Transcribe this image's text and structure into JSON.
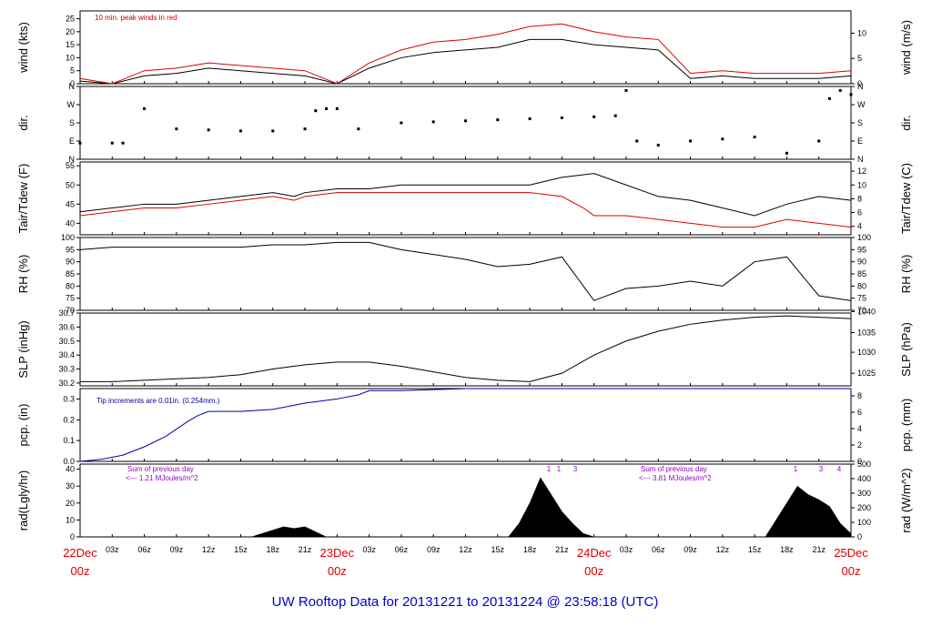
{
  "title": "UW Rooftop Data for 20131221  to  20131224 @ 23:58:18  (UTC)",
  "colors": {
    "black": "#000000",
    "red": "#dd0000",
    "blue": "#0000aa",
    "purple": "#9900cc",
    "title": "#0000cc"
  },
  "time_axis": {
    "hour_ticks": [
      "03z",
      "06z",
      "09z",
      "12z",
      "15z",
      "18z",
      "21z"
    ],
    "days": [
      {
        "date": "22Dec",
        "hour": "00z"
      },
      {
        "date": "23Dec",
        "hour": "00z"
      },
      {
        "date": "24Dec",
        "hour": "00z"
      },
      {
        "date": "25Dec",
        "hour": "00z"
      }
    ]
  },
  "chart_data": [
    {
      "id": "wind",
      "type": "line",
      "ylabel_left": "wind (kts)",
      "ylabel_right": "wind (m/s)",
      "ylim": [
        0,
        28
      ],
      "ticks_left": [
        "0",
        "5",
        "10",
        "15",
        "20",
        "25"
      ],
      "ticks_left_values": [
        0,
        5,
        10,
        15,
        20,
        25
      ],
      "ticks_right": [
        "0",
        "5",
        "10"
      ],
      "ticks_right_values": [
        0,
        9.72,
        19.44
      ],
      "annotation": "10 min. peak winds in red",
      "series": [
        {
          "name": "mean",
          "color": "#000000",
          "x": [
            0,
            3,
            6,
            9,
            12,
            15,
            18,
            21,
            24,
            27,
            30,
            33,
            36,
            39,
            42,
            45,
            48,
            51,
            54,
            57,
            60,
            63,
            66,
            69,
            72
          ],
          "y": [
            1,
            0,
            3,
            4,
            6,
            5,
            4,
            3,
            0,
            6,
            10,
            12,
            13,
            14,
            17,
            17,
            15,
            14,
            13,
            2,
            3,
            2,
            2,
            2,
            3
          ]
        },
        {
          "name": "peak",
          "color": "#dd0000",
          "x": [
            0,
            3,
            6,
            9,
            12,
            15,
            18,
            21,
            24,
            27,
            30,
            33,
            36,
            39,
            42,
            45,
            48,
            51,
            54,
            57,
            60,
            63,
            66,
            69,
            72
          ],
          "y": [
            2,
            0,
            5,
            6,
            8,
            7,
            6,
            5,
            0,
            8,
            13,
            16,
            17,
            19,
            22,
            23,
            20,
            18,
            17,
            4,
            5,
            4,
            4,
            4,
            5
          ]
        }
      ]
    },
    {
      "id": "dir",
      "type": "scatter",
      "ylabel_left": "dir.",
      "ylabel_right": "dir.",
      "ylim": [
        0,
        360
      ],
      "ticks_left": [
        "N",
        "E",
        "S",
        "W",
        "N"
      ],
      "ticks_left_values": [
        0,
        90,
        180,
        270,
        360
      ],
      "ticks_right": [
        "N",
        "E",
        "S",
        "W",
        "N"
      ],
      "ticks_right_values": [
        0,
        90,
        180,
        270,
        360
      ],
      "series": [
        {
          "name": "direction",
          "color": "#000000",
          "x": [
            0,
            3,
            4,
            6,
            9,
            12,
            15,
            18,
            21,
            22,
            23,
            24,
            26,
            30,
            33,
            36,
            39,
            42,
            45,
            48,
            50,
            51,
            52,
            54,
            57,
            60,
            63,
            66,
            69,
            70,
            71,
            72
          ],
          "y": [
            80,
            80,
            80,
            250,
            150,
            145,
            140,
            140,
            150,
            240,
            250,
            250,
            150,
            180,
            185,
            190,
            195,
            200,
            205,
            210,
            215,
            340,
            90,
            70,
            90,
            100,
            110,
            30,
            90,
            300,
            340,
            320
          ]
        }
      ]
    },
    {
      "id": "temp",
      "type": "line",
      "ylabel_left": "Tair/Tdew (F)",
      "ylabel_right": "Tair/Tdew (C)",
      "ylim": [
        37,
        56
      ],
      "ticks_left": [
        "40",
        "45",
        "50",
        "55"
      ],
      "ticks_left_values": [
        40,
        45,
        50,
        55
      ],
      "ticks_right": [
        "4",
        "6",
        "8",
        "10",
        "12"
      ],
      "ticks_right_values": [
        39.2,
        42.8,
        46.4,
        50,
        53.6
      ],
      "series": [
        {
          "name": "Tair",
          "color": "#000000",
          "x": [
            0,
            3,
            6,
            9,
            12,
            15,
            18,
            20,
            21,
            24,
            27,
            30,
            33,
            36,
            39,
            42,
            45,
            48,
            51,
            53,
            54,
            57,
            60,
            63,
            66,
            69,
            72
          ],
          "y": [
            43,
            44,
            45,
            45,
            46,
            47,
            48,
            47,
            48,
            49,
            49,
            50,
            50,
            50,
            50,
            50,
            52,
            53,
            50,
            48,
            47,
            46,
            44,
            42,
            45,
            47,
            46
          ]
        },
        {
          "name": "Tdew",
          "color": "#dd0000",
          "x": [
            0,
            3,
            6,
            9,
            12,
            15,
            18,
            20,
            21,
            24,
            27,
            30,
            33,
            36,
            39,
            42,
            45,
            47,
            48,
            51,
            54,
            57,
            60,
            63,
            66,
            69,
            72
          ],
          "y": [
            42,
            43,
            44,
            44,
            45,
            46,
            47,
            46,
            47,
            48,
            48,
            48,
            48,
            48,
            48,
            48,
            47,
            44,
            42,
            42,
            41,
            40,
            39,
            39,
            41,
            40,
            39
          ]
        }
      ]
    },
    {
      "id": "rh",
      "type": "line",
      "ylabel_left": "RH (%)",
      "ylabel_right": "RH (%)",
      "ylim": [
        70,
        100
      ],
      "ticks_left": [
        "70",
        "75",
        "80",
        "85",
        "90",
        "95",
        "100"
      ],
      "ticks_left_values": [
        70,
        75,
        80,
        85,
        90,
        95,
        100
      ],
      "ticks_right": [
        "70",
        "75",
        "80",
        "85",
        "90",
        "95",
        "100"
      ],
      "ticks_right_values": [
        70,
        75,
        80,
        85,
        90,
        95,
        100
      ],
      "series": [
        {
          "name": "RH",
          "color": "#000000",
          "x": [
            0,
            3,
            6,
            9,
            12,
            15,
            18,
            21,
            24,
            27,
            30,
            33,
            36,
            39,
            42,
            45,
            46,
            47,
            48,
            51,
            54,
            57,
            60,
            63,
            66,
            69,
            72
          ],
          "y": [
            95,
            96,
            96,
            96,
            96,
            96,
            97,
            97,
            98,
            98,
            95,
            93,
            91,
            88,
            89,
            92,
            86,
            80,
            74,
            79,
            80,
            82,
            80,
            90,
            92,
            76,
            74
          ]
        }
      ]
    },
    {
      "id": "slp",
      "type": "line",
      "ylabel_left": "SLP (inHg)",
      "ylabel_right": "SLP (hPa)",
      "ylim": [
        30.18,
        30.7
      ],
      "ticks_left": [
        "30.2",
        "30.3",
        "30.4",
        "30.5",
        "30.6",
        "30.7"
      ],
      "ticks_left_values": [
        30.2,
        30.3,
        30.4,
        30.5,
        30.6,
        30.7
      ],
      "ticks_right": [
        "1025",
        "1030",
        "1035",
        "1040"
      ],
      "ticks_right_values": [
        30.27,
        30.42,
        30.56,
        30.71
      ],
      "series": [
        {
          "name": "SLP",
          "color": "#000000",
          "x": [
            0,
            3,
            6,
            9,
            12,
            15,
            18,
            21,
            24,
            27,
            30,
            33,
            36,
            39,
            42,
            45,
            48,
            51,
            54,
            57,
            60,
            63,
            66,
            69,
            72
          ],
          "y": [
            30.21,
            30.21,
            30.22,
            30.23,
            30.24,
            30.26,
            30.3,
            30.33,
            30.35,
            30.35,
            30.32,
            30.28,
            30.24,
            30.22,
            30.21,
            30.27,
            30.4,
            30.5,
            30.57,
            30.62,
            30.65,
            30.67,
            30.68,
            30.67,
            30.66
          ]
        }
      ]
    },
    {
      "id": "pcp",
      "type": "line",
      "ylabel_left": "pcp. (in)",
      "ylabel_right": "pcp. (mm)",
      "ylim": [
        0,
        0.35
      ],
      "ticks_left": [
        "0.0",
        "0.1",
        "0.2",
        "0.3"
      ],
      "ticks_left_values": [
        0,
        0.1,
        0.2,
        0.3
      ],
      "ticks_right": [
        "0",
        "2",
        "4",
        "6",
        "8"
      ],
      "ticks_right_values": [
        0,
        0.0787,
        0.1575,
        0.2362,
        0.315
      ],
      "annotation": "Tip increments are 0.01in. (0.254mm.)",
      "series": [
        {
          "name": "precip",
          "color": "#0000aa",
          "x": [
            0,
            2,
            4,
            6,
            8,
            10,
            11,
            12,
            15,
            18,
            21,
            24,
            26,
            27,
            30,
            36,
            39,
            42,
            72
          ],
          "y": [
            0,
            0.01,
            0.03,
            0.07,
            0.12,
            0.19,
            0.22,
            0.24,
            0.24,
            0.25,
            0.28,
            0.3,
            0.32,
            0.34,
            0.34,
            0.35,
            0.35,
            0.35,
            0.35
          ]
        }
      ]
    },
    {
      "id": "rad",
      "type": "area",
      "ylabel_left": "rad(Lgly/hr)",
      "ylabel_right": "rad (W/m^2)",
      "ylim": [
        0,
        43
      ],
      "ticks_left": [
        "0",
        "10",
        "20",
        "30",
        "40"
      ],
      "ticks_left_values": [
        0,
        10,
        20,
        30,
        40
      ],
      "ticks_right": [
        "0",
        "100",
        "200",
        "300",
        "400",
        "500"
      ],
      "ticks_right_values": [
        0,
        8.6,
        17.2,
        25.8,
        34.4,
        43
      ],
      "markers": [
        "1",
        "1",
        "3",
        "1",
        "3",
        "4"
      ],
      "annotations": [
        {
          "line1": "Sum of previous day",
          "line2": "<--- 1.21 MJoules/m^2"
        },
        {
          "line1": "Sum of previous day",
          "line2": "<--- 3.81 MJoules/m^2"
        }
      ],
      "series": [
        {
          "name": "radiation",
          "color": "#000000",
          "x": [
            16,
            17,
            18,
            19,
            20,
            21,
            22,
            23,
            40,
            41,
            42,
            43,
            44,
            45,
            46,
            47,
            48,
            64,
            65,
            66,
            67,
            68,
            69,
            70,
            71,
            72
          ],
          "y": [
            0,
            2,
            4,
            6,
            5,
            6,
            3,
            0,
            0,
            8,
            20,
            35,
            25,
            15,
            8,
            2,
            0,
            0,
            10,
            20,
            30,
            25,
            22,
            18,
            8,
            2
          ]
        }
      ]
    }
  ]
}
